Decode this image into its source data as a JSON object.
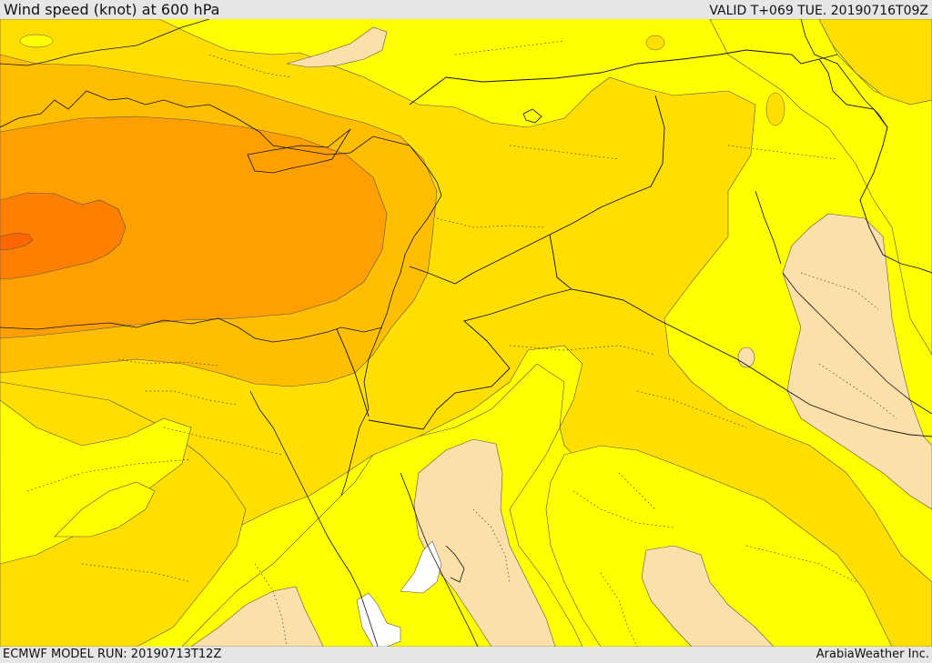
{
  "header": {
    "title": "Wind speed (knot) at 600 hPa",
    "valid": "VALID T+069 TUE. 20190716T09Z"
  },
  "footer": {
    "model_run": "ECMWF MODEL RUN: 20190713T12Z",
    "credit": "ArabiaWeather Inc."
  },
  "map": {
    "variable": "wind speed",
    "level": "600 hPa",
    "units": "knot",
    "colors": {
      "white": "#ffffff",
      "peach": "#fde0a9",
      "yellow": "#ffff00",
      "gold": "#ffde00",
      "amber": "#ffbe00",
      "orange": "#ffa000",
      "dark_orange": "#ff7f00",
      "deep_orange": "#ff6600"
    }
  }
}
